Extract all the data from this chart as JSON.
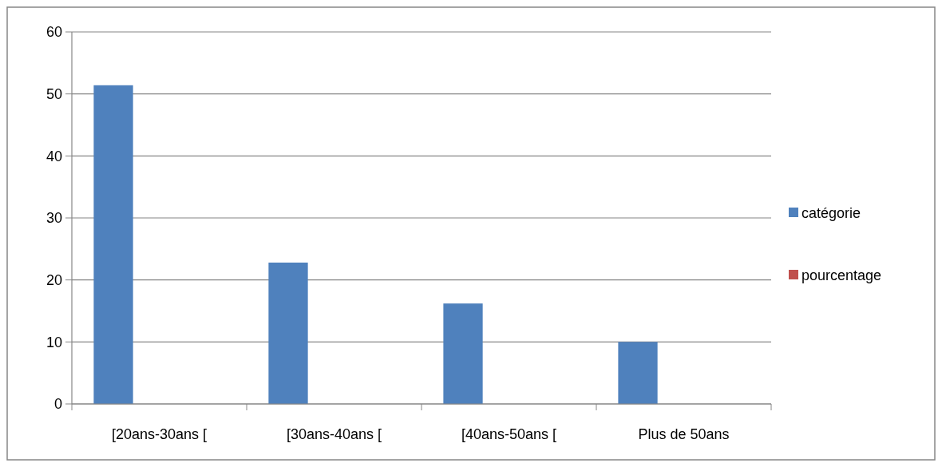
{
  "chart_data": {
    "type": "bar",
    "categories": [
      "[20ans-30ans [",
      "[30ans-40ans [",
      "[40ans-50ans [",
      "Plus de 50ans"
    ],
    "series": [
      {
        "name": "catégorie",
        "color": "#4f81bd",
        "values": [
          51.4,
          22.8,
          16.2,
          10
        ]
      },
      {
        "name": "pourcentage",
        "color": "#c0504d",
        "values": [
          null,
          null,
          null,
          null
        ]
      }
    ],
    "ylim": [
      0,
      60
    ],
    "yticks": [
      0,
      10,
      20,
      30,
      40,
      50,
      60
    ],
    "grid": "y",
    "legend": "right"
  }
}
